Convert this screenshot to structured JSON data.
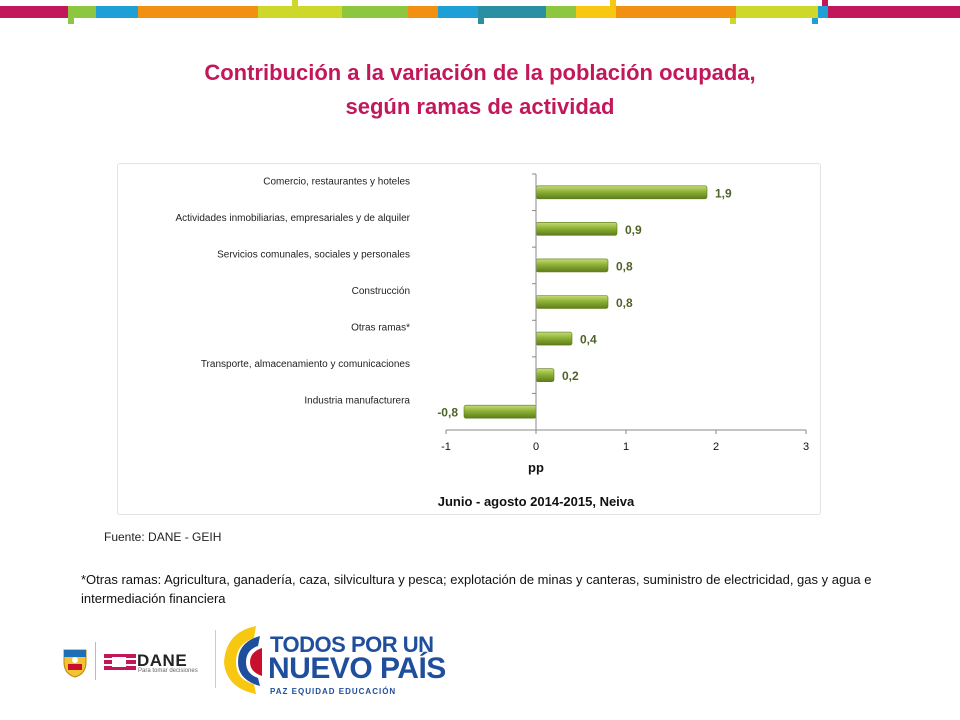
{
  "title": {
    "line1": "Contribución a la variación de la población ocupada,",
    "line2": "según ramas de actividad"
  },
  "chart_data": {
    "type": "bar",
    "orientation": "horizontal",
    "categories": [
      "Comercio, restaurantes y hoteles",
      "Actividades inmobiliarias, empresariales y de alquiler",
      "Servicios comunales, sociales y personales",
      "Construcción",
      "Otras ramas*",
      "Transporte, almacenamiento y comunicaciones",
      "Industria manufacturera"
    ],
    "values": [
      1.9,
      0.9,
      0.8,
      0.8,
      0.4,
      0.2,
      -0.8
    ],
    "data_labels": [
      "1,9",
      "0,9",
      "0,8",
      "0,8",
      "0,4",
      "0,2",
      "-0,8"
    ],
    "xlim": [
      -1,
      3
    ],
    "xticks": [
      "-1",
      "0",
      "1",
      "2",
      "3"
    ],
    "xlabel": "pp",
    "subtitle": "Junio - agosto 2014-2015, Neiva",
    "bar_color": "#7a9a2a",
    "label_color": "#4f6228",
    "grid": false
  },
  "source": "Fuente: DANE - GEIH",
  "note": "*Otras ramas: Agricultura, ganadería, caza, silvicultura y pesca; explotación de minas y canteras, suministro de electricidad, gas y agua e intermediación financiera",
  "footer": {
    "dane_word": "DANE",
    "dane_tagline": "Para tomar decisiones",
    "tpu_line1": "TODOS POR UN",
    "tpu_line2": "NUEVO PAÍS",
    "tpu_line3": "PAZ  EQUIDAD  EDUCACIÓN"
  },
  "colors": {
    "title": "#c2185b",
    "band": [
      "#c2185b",
      "#8dc63f",
      "#1ea0d6",
      "#f29111",
      "#cdd82a",
      "#2a8fa0",
      "#f7c80f"
    ]
  }
}
